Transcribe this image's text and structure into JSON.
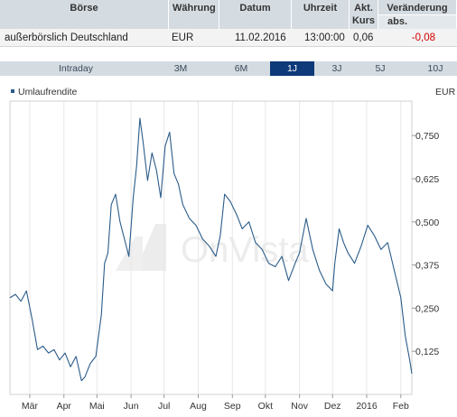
{
  "quote_table": {
    "headers": {
      "exchange": "Börse",
      "currency": "Währung",
      "date": "Datum",
      "time": "Uhrzeit",
      "price_line1": "Akt.",
      "price_line2": "Kurs",
      "change": "Veränderung",
      "change_abs": "abs."
    },
    "row": {
      "exchange": "außerbörslich Deutschland",
      "currency": "EUR",
      "date": "11.02.2016",
      "time": "13:00:00",
      "price": "0,06",
      "change_abs": "-0,08"
    }
  },
  "tabs": [
    {
      "label": "Intraday",
      "active": false
    },
    {
      "label": "3M",
      "active": false
    },
    {
      "label": "6M",
      "active": false
    },
    {
      "label": "1J",
      "active": true
    },
    {
      "label": "3J",
      "active": false
    },
    {
      "label": "5J",
      "active": false
    },
    {
      "label": "10J",
      "active": false
    }
  ],
  "watermark": "OnVista",
  "colors": {
    "line": "#2b5c8a",
    "header_bg": "#d4dbe1",
    "active_tab": "#0e3a7a",
    "negative": "#d40000"
  },
  "chart_data": {
    "type": "line",
    "unit_label": "EUR",
    "series": [
      {
        "name": "Umlaufrendite",
        "x": [
          "2015-02-11",
          "2015-02-16",
          "2015-02-21",
          "2015-02-26",
          "2015-03-03",
          "2015-03-08",
          "2015-03-13",
          "2015-03-18",
          "2015-03-23",
          "2015-03-28",
          "2015-04-02",
          "2015-04-07",
          "2015-04-12",
          "2015-04-17",
          "2015-04-20",
          "2015-04-25",
          "2015-04-30",
          "2015-05-05",
          "2015-05-08",
          "2015-05-11",
          "2015-05-14",
          "2015-05-18",
          "2015-05-22",
          "2015-05-26",
          "2015-05-30",
          "2015-06-03",
          "2015-06-06",
          "2015-06-09",
          "2015-06-12",
          "2015-06-16",
          "2015-06-20",
          "2015-06-24",
          "2015-06-28",
          "2015-07-02",
          "2015-07-06",
          "2015-07-10",
          "2015-07-14",
          "2015-07-18",
          "2015-07-24",
          "2015-07-30",
          "2015-08-05",
          "2015-08-11",
          "2015-08-17",
          "2015-08-21",
          "2015-08-25",
          "2015-08-30",
          "2015-09-05",
          "2015-09-10",
          "2015-09-16",
          "2015-09-22",
          "2015-09-28",
          "2015-10-04",
          "2015-10-10",
          "2015-10-16",
          "2015-10-22",
          "2015-10-28",
          "2015-11-01",
          "2015-11-07",
          "2015-11-13",
          "2015-11-19",
          "2015-11-25",
          "2015-12-01",
          "2015-12-03",
          "2015-12-07",
          "2015-12-11",
          "2015-12-15",
          "2015-12-21",
          "2015-12-27",
          "2016-01-02",
          "2016-01-08",
          "2016-01-14",
          "2016-01-20",
          "2016-01-26",
          "2016-02-01",
          "2016-02-05",
          "2016-02-09",
          "2016-02-11"
        ],
        "y": [
          0.28,
          0.29,
          0.27,
          0.3,
          0.22,
          0.13,
          0.14,
          0.12,
          0.13,
          0.1,
          0.12,
          0.08,
          0.11,
          0.04,
          0.05,
          0.09,
          0.11,
          0.23,
          0.38,
          0.41,
          0.55,
          0.58,
          0.5,
          0.45,
          0.4,
          0.57,
          0.66,
          0.8,
          0.73,
          0.62,
          0.7,
          0.65,
          0.57,
          0.72,
          0.76,
          0.64,
          0.61,
          0.55,
          0.51,
          0.49,
          0.45,
          0.43,
          0.4,
          0.46,
          0.58,
          0.56,
          0.52,
          0.48,
          0.5,
          0.44,
          0.42,
          0.38,
          0.37,
          0.4,
          0.33,
          0.38,
          0.41,
          0.51,
          0.42,
          0.36,
          0.32,
          0.3,
          0.38,
          0.48,
          0.44,
          0.41,
          0.38,
          0.43,
          0.49,
          0.46,
          0.42,
          0.44,
          0.36,
          0.28,
          0.17,
          0.1,
          0.06
        ]
      }
    ],
    "x_ticks": [
      {
        "label": "Mär",
        "x": "2015-03-01"
      },
      {
        "label": "Apr",
        "x": "2015-04-01"
      },
      {
        "label": "Mai",
        "x": "2015-05-01"
      },
      {
        "label": "Jun",
        "x": "2015-06-01"
      },
      {
        "label": "Jul",
        "x": "2015-07-01"
      },
      {
        "label": "Aug",
        "x": "2015-08-01"
      },
      {
        "label": "Sep",
        "x": "2015-09-01"
      },
      {
        "label": "Okt",
        "x": "2015-10-01"
      },
      {
        "label": "Nov",
        "x": "2015-11-01"
      },
      {
        "label": "Dez",
        "x": "2015-12-01"
      },
      {
        "label": "2016",
        "x": "2016-01-01"
      },
      {
        "label": "Feb",
        "x": "2016-02-01"
      }
    ],
    "y_ticks": [
      0.125,
      0.25,
      0.375,
      0.5,
      0.625,
      0.75
    ],
    "y_tick_labels": [
      "0,125",
      "0,250",
      "0,375",
      "0,500",
      "0,625",
      "0,750"
    ],
    "xlim": [
      "2015-02-11",
      "2016-02-11"
    ],
    "ylim": [
      0.0,
      0.85
    ],
    "y_axis_position": "right",
    "grid": "vertical",
    "legend_position": "top-left"
  }
}
